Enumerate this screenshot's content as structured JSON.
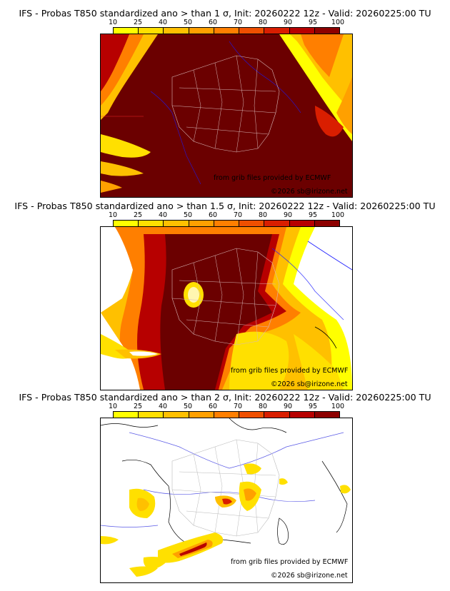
{
  "legend": {
    "ticks": [
      "10",
      "25",
      "40",
      "50",
      "60",
      "70",
      "80",
      "90",
      "95",
      "100"
    ],
    "colors": [
      "#ffff00",
      "#ffe000",
      "#ffc000",
      "#ffa000",
      "#ff7f00",
      "#ef4f00",
      "#d91e00",
      "#b70000",
      "#8d0000",
      "#5a0000"
    ]
  },
  "panels": [
    {
      "title": "IFS - Probas T850  standardized ano > than 1 σ, Init: 20260222 12z - Valid: 20260225:00 TU",
      "credit_source": "from grib files provided by ECMWF",
      "credit_copyright": "©2026 sb@irizone.net"
    },
    {
      "title": "IFS - Probas T850  standardized ano > than 1.5 σ, Init: 20260222 12z - Valid: 20260225:00 TU",
      "credit_source": "from grib files provided by ECMWF",
      "credit_copyright": "©2026 sb@irizone.net"
    },
    {
      "title": "IFS - Probas T850  standardized ano > than 2 σ, Init: 20260222 12z - Valid: 20260225:00 TU",
      "credit_source": "from grib files provided by ECMWF",
      "credit_copyright": "©2026 sb@irizone.net"
    }
  ]
}
